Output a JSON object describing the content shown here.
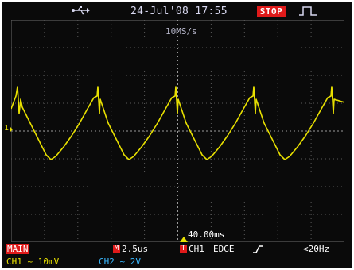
{
  "header": {
    "datetime": "24-Jul'08 17:55",
    "stop_label": "STOP",
    "usb_icon": "usb-icon",
    "trigger_edge_icon": "rising-pulse-icon"
  },
  "display": {
    "sample_rate": "10MS/s",
    "trigger_position": "40.00ms",
    "ch1_ground_label": "1",
    "grid_divisions": {
      "horizontal": 10,
      "vertical": 8
    },
    "trace_color": "#e8e000",
    "grid_color": "#5a5a5a"
  },
  "footer": {
    "mode_label": "MAIN",
    "timebase_badge": "M",
    "timebase": "2.5us",
    "trigger_source_badge": "T",
    "trigger_source": "CH1",
    "trigger_type": "EDGE",
    "trigger_slope_icon": "rising-edge-icon",
    "trigger_frequency": "<20Hz",
    "ch1_scale": "CH1 ~ 10mV",
    "ch2_scale": "CH2 ~ 2V"
  },
  "colors": {
    "ch1": "#e8e000",
    "ch2": "#3ab8ff",
    "badge_red": "#e01a1a",
    "background": "#0a0a0a"
  }
}
